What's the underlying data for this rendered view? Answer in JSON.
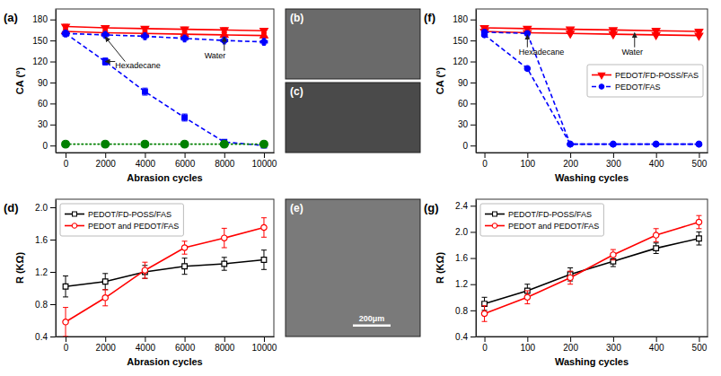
{
  "chart_data": [
    {
      "type": "line",
      "title": "(a)",
      "x_label": "Abrasion cycles",
      "y_label": "CA (°)",
      "x": [
        0,
        2000,
        4000,
        6000,
        8000,
        10000
      ],
      "series": [
        {
          "color": "red",
          "marker": "triangle-down",
          "line_style": "solid",
          "values": [
            170,
            168,
            167,
            166,
            165,
            164
          ],
          "error": [
            3,
            3,
            3,
            3,
            3,
            3
          ]
        },
        {
          "color": "red",
          "marker": "triangle-up",
          "line_style": "solid",
          "values": [
            163,
            161,
            160,
            159,
            158,
            157
          ],
          "error": [
            3,
            3,
            3,
            3,
            3,
            3
          ]
        },
        {
          "color": "blue",
          "marker": "plus",
          "line_style": "dashed",
          "values": [
            160,
            158,
            156,
            153,
            150,
            148
          ],
          "error": [
            3,
            3,
            3,
            3,
            3,
            3
          ]
        },
        {
          "color": "blue",
          "marker": "square",
          "line_style": "dashed",
          "values": [
            160,
            120,
            77,
            40,
            5,
            0
          ],
          "error": [
            3,
            5,
            5,
            5,
            3,
            2
          ]
        },
        {
          "color": "green",
          "marker": "circle",
          "line_style": "dotted",
          "values": [
            2,
            2,
            2,
            2,
            2,
            2
          ]
        }
      ],
      "xlim": [
        -500,
        10500
      ],
      "ylim": [
        -10,
        195
      ],
      "xticks": [
        0,
        2000,
        4000,
        6000,
        8000,
        10000
      ],
      "yticks": [
        0,
        30,
        60,
        90,
        120,
        150,
        180
      ],
      "grid": false,
      "annotations": [
        {
          "text": "Hexadecane",
          "x": 2500,
          "y": 110,
          "xy": [
            2000,
            120
          ]
        },
        {
          "x": 3000,
          "y": 120,
          "xy": [
            2000,
            155
          ]
        },
        {
          "text": "Water",
          "x": 7000,
          "y": 125,
          "xy": [
            8000,
            155
          ]
        }
      ]
    },
    {
      "type": "image",
      "title": "(b)",
      "color": "#6a6a6a"
    },
    {
      "type": "image",
      "title": "(c)",
      "color": "#4a4a4a"
    },
    {
      "type": "line",
      "title": "(d)",
      "x_label": "Abrasion cycles",
      "y_label": "R (KΩ)",
      "x": [
        0,
        2000,
        4000,
        6000,
        8000,
        10000
      ],
      "series": [
        {
          "name": "PEDOT/FD-POSS/FAS",
          "color": "black",
          "marker": "square-open",
          "line_style": "solid",
          "values": [
            1.02,
            1.08,
            1.2,
            1.27,
            1.3,
            1.35
          ],
          "error": [
            0.13,
            0.1,
            0.08,
            0.1,
            0.08,
            0.12
          ]
        },
        {
          "name": "PEDOT and PEDOT/FAS",
          "color": "red",
          "marker": "circle-open",
          "line_style": "solid",
          "values": [
            0.58,
            0.88,
            1.22,
            1.5,
            1.62,
            1.75
          ],
          "error": [
            0.18,
            0.1,
            0.1,
            0.08,
            0.12,
            0.12
          ]
        }
      ],
      "xlim": [
        -500,
        10500
      ],
      "ylim": [
        0.4,
        2.1
      ],
      "xticks": [
        0,
        2000,
        4000,
        6000,
        8000,
        10000
      ],
      "yticks": [
        0.4,
        0.8,
        1.2,
        1.6,
        {
          "value": 2,
          "label": "2.0"
        }
      ],
      "grid": false,
      "legend": "upper left"
    },
    {
      "type": "image",
      "title": "(e)",
      "color": "#7a7a7a",
      "annotations": [
        {
          "text": "200μm"
        }
      ]
    },
    {
      "type": "line",
      "title": "(f)",
      "x_label": "Washing cycles",
      "y_label": "CA (°)",
      "x": [
        0,
        100,
        200,
        300,
        400,
        500
      ],
      "series": [
        {
          "name": "PEDOT/FD-POSS/FAS",
          "color": "red",
          "marker": "triangle-down",
          "line_style": "solid",
          "values": [
            168,
            167,
            166,
            165,
            164,
            163
          ]
        },
        {
          "color": "red",
          "marker": "triangle-down",
          "line_style": "solid",
          "values": [
            163,
            161,
            160,
            159,
            158,
            157
          ]
        },
        {
          "name": "PEDOT/FAS",
          "color": "blue",
          "marker": "circle",
          "line_style": "dashed",
          "values": [
            162,
            160,
            2,
            2,
            2,
            2
          ]
        },
        {
          "color": "blue",
          "marker": "circle",
          "line_style": "dashed",
          "values": [
            158,
            110,
            2,
            2,
            2,
            2
          ]
        }
      ],
      "xlim": [
        -20,
        520
      ],
      "ylim": [
        -10,
        195
      ],
      "xticks": [
        0,
        100,
        200,
        300,
        400,
        500
      ],
      "yticks": [
        0,
        30,
        60,
        90,
        120,
        150,
        180
      ],
      "grid": false,
      "legend": "center right",
      "annotations": [
        {
          "text": "Hexadecane",
          "x": 80,
          "y": 130,
          "xy": [
            100,
            158
          ]
        },
        {
          "text": "Water",
          "x": 320,
          "y": 130,
          "xy": [
            350,
            161
          ]
        }
      ]
    },
    {
      "type": "line",
      "title": "(g)",
      "x_label": "Washing cycles",
      "y_label": "R (KΩ)",
      "x": [
        0,
        100,
        200,
        300,
        400,
        500
      ],
      "series": [
        {
          "name": "PEDOT/FD-POSS/FAS",
          "color": "black",
          "marker": "square-open",
          "line_style": "solid",
          "values": [
            0.9,
            1.1,
            1.35,
            1.55,
            1.75,
            1.9
          ],
          "error": [
            0.1,
            0.1,
            0.1,
            0.08,
            0.08,
            0.1
          ]
        },
        {
          "name": "PEDOT and PEDOT/FAS",
          "color": "red",
          "marker": "circle-open",
          "line_style": "solid",
          "values": [
            0.75,
            1.0,
            1.3,
            1.65,
            1.95,
            2.15
          ],
          "error": [
            0.12,
            0.1,
            0.1,
            0.08,
            0.1,
            0.1
          ]
        }
      ],
      "xlim": [
        -20,
        520
      ],
      "ylim": [
        0.4,
        2.5
      ],
      "xticks": [
        0,
        100,
        200,
        300,
        400,
        500
      ],
      "yticks": [
        0.4,
        0.8,
        1.2,
        1.6,
        {
          "value": 2,
          "label": "2.0"
        },
        2.4
      ],
      "grid": false,
      "legend": "upper left"
    }
  ]
}
